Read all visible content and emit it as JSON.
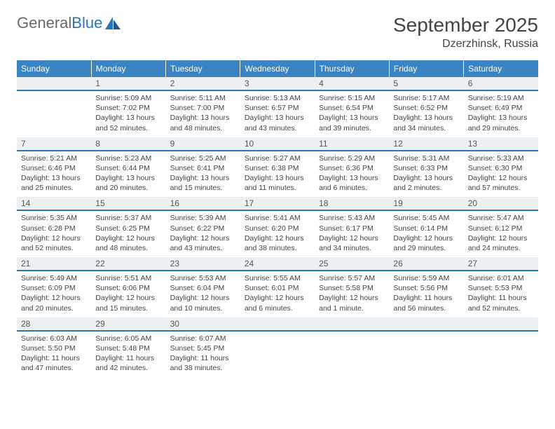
{
  "logo": {
    "word1": "General",
    "word2": "Blue"
  },
  "title": "September 2025",
  "location": "Dzerzhinsk, Russia",
  "day_headers": [
    "Sunday",
    "Monday",
    "Tuesday",
    "Wednesday",
    "Thursday",
    "Friday",
    "Saturday"
  ],
  "colors": {
    "header_bg": "#3a84c4",
    "header_text": "#ffffff",
    "daynum_bg": "#edf0f2",
    "daynum_border": "#2a76b8",
    "body_text": "#444444",
    "logo_gray": "#6a6a6a",
    "logo_blue": "#2a76b8",
    "background": "#ffffff"
  },
  "typography": {
    "title_fontsize": 28,
    "location_fontsize": 16,
    "header_fontsize": 12,
    "daynum_fontsize": 12,
    "body_fontsize": 10.5
  },
  "calendar": {
    "start_offset": 1,
    "days": [
      {
        "n": "1",
        "sunrise": "Sunrise: 5:09 AM",
        "sunset": "Sunset: 7:02 PM",
        "day1": "Daylight: 13 hours",
        "day2": "and 52 minutes."
      },
      {
        "n": "2",
        "sunrise": "Sunrise: 5:11 AM",
        "sunset": "Sunset: 7:00 PM",
        "day1": "Daylight: 13 hours",
        "day2": "and 48 minutes."
      },
      {
        "n": "3",
        "sunrise": "Sunrise: 5:13 AM",
        "sunset": "Sunset: 6:57 PM",
        "day1": "Daylight: 13 hours",
        "day2": "and 43 minutes."
      },
      {
        "n": "4",
        "sunrise": "Sunrise: 5:15 AM",
        "sunset": "Sunset: 6:54 PM",
        "day1": "Daylight: 13 hours",
        "day2": "and 39 minutes."
      },
      {
        "n": "5",
        "sunrise": "Sunrise: 5:17 AM",
        "sunset": "Sunset: 6:52 PM",
        "day1": "Daylight: 13 hours",
        "day2": "and 34 minutes."
      },
      {
        "n": "6",
        "sunrise": "Sunrise: 5:19 AM",
        "sunset": "Sunset: 6:49 PM",
        "day1": "Daylight: 13 hours",
        "day2": "and 29 minutes."
      },
      {
        "n": "7",
        "sunrise": "Sunrise: 5:21 AM",
        "sunset": "Sunset: 6:46 PM",
        "day1": "Daylight: 13 hours",
        "day2": "and 25 minutes."
      },
      {
        "n": "8",
        "sunrise": "Sunrise: 5:23 AM",
        "sunset": "Sunset: 6:44 PM",
        "day1": "Daylight: 13 hours",
        "day2": "and 20 minutes."
      },
      {
        "n": "9",
        "sunrise": "Sunrise: 5:25 AM",
        "sunset": "Sunset: 6:41 PM",
        "day1": "Daylight: 13 hours",
        "day2": "and 15 minutes."
      },
      {
        "n": "10",
        "sunrise": "Sunrise: 5:27 AM",
        "sunset": "Sunset: 6:38 PM",
        "day1": "Daylight: 13 hours",
        "day2": "and 11 minutes."
      },
      {
        "n": "11",
        "sunrise": "Sunrise: 5:29 AM",
        "sunset": "Sunset: 6:36 PM",
        "day1": "Daylight: 13 hours",
        "day2": "and 6 minutes."
      },
      {
        "n": "12",
        "sunrise": "Sunrise: 5:31 AM",
        "sunset": "Sunset: 6:33 PM",
        "day1": "Daylight: 13 hours",
        "day2": "and 2 minutes."
      },
      {
        "n": "13",
        "sunrise": "Sunrise: 5:33 AM",
        "sunset": "Sunset: 6:30 PM",
        "day1": "Daylight: 12 hours",
        "day2": "and 57 minutes."
      },
      {
        "n": "14",
        "sunrise": "Sunrise: 5:35 AM",
        "sunset": "Sunset: 6:28 PM",
        "day1": "Daylight: 12 hours",
        "day2": "and 52 minutes."
      },
      {
        "n": "15",
        "sunrise": "Sunrise: 5:37 AM",
        "sunset": "Sunset: 6:25 PM",
        "day1": "Daylight: 12 hours",
        "day2": "and 48 minutes."
      },
      {
        "n": "16",
        "sunrise": "Sunrise: 5:39 AM",
        "sunset": "Sunset: 6:22 PM",
        "day1": "Daylight: 12 hours",
        "day2": "and 43 minutes."
      },
      {
        "n": "17",
        "sunrise": "Sunrise: 5:41 AM",
        "sunset": "Sunset: 6:20 PM",
        "day1": "Daylight: 12 hours",
        "day2": "and 38 minutes."
      },
      {
        "n": "18",
        "sunrise": "Sunrise: 5:43 AM",
        "sunset": "Sunset: 6:17 PM",
        "day1": "Daylight: 12 hours",
        "day2": "and 34 minutes."
      },
      {
        "n": "19",
        "sunrise": "Sunrise: 5:45 AM",
        "sunset": "Sunset: 6:14 PM",
        "day1": "Daylight: 12 hours",
        "day2": "and 29 minutes."
      },
      {
        "n": "20",
        "sunrise": "Sunrise: 5:47 AM",
        "sunset": "Sunset: 6:12 PM",
        "day1": "Daylight: 12 hours",
        "day2": "and 24 minutes."
      },
      {
        "n": "21",
        "sunrise": "Sunrise: 5:49 AM",
        "sunset": "Sunset: 6:09 PM",
        "day1": "Daylight: 12 hours",
        "day2": "and 20 minutes."
      },
      {
        "n": "22",
        "sunrise": "Sunrise: 5:51 AM",
        "sunset": "Sunset: 6:06 PM",
        "day1": "Daylight: 12 hours",
        "day2": "and 15 minutes."
      },
      {
        "n": "23",
        "sunrise": "Sunrise: 5:53 AM",
        "sunset": "Sunset: 6:04 PM",
        "day1": "Daylight: 12 hours",
        "day2": "and 10 minutes."
      },
      {
        "n": "24",
        "sunrise": "Sunrise: 5:55 AM",
        "sunset": "Sunset: 6:01 PM",
        "day1": "Daylight: 12 hours",
        "day2": "and 6 minutes."
      },
      {
        "n": "25",
        "sunrise": "Sunrise: 5:57 AM",
        "sunset": "Sunset: 5:58 PM",
        "day1": "Daylight: 12 hours",
        "day2": "and 1 minute."
      },
      {
        "n": "26",
        "sunrise": "Sunrise: 5:59 AM",
        "sunset": "Sunset: 5:56 PM",
        "day1": "Daylight: 11 hours",
        "day2": "and 56 minutes."
      },
      {
        "n": "27",
        "sunrise": "Sunrise: 6:01 AM",
        "sunset": "Sunset: 5:53 PM",
        "day1": "Daylight: 11 hours",
        "day2": "and 52 minutes."
      },
      {
        "n": "28",
        "sunrise": "Sunrise: 6:03 AM",
        "sunset": "Sunset: 5:50 PM",
        "day1": "Daylight: 11 hours",
        "day2": "and 47 minutes."
      },
      {
        "n": "29",
        "sunrise": "Sunrise: 6:05 AM",
        "sunset": "Sunset: 5:48 PM",
        "day1": "Daylight: 11 hours",
        "day2": "and 42 minutes."
      },
      {
        "n": "30",
        "sunrise": "Sunrise: 6:07 AM",
        "sunset": "Sunset: 5:45 PM",
        "day1": "Daylight: 11 hours",
        "day2": "and 38 minutes."
      }
    ]
  }
}
